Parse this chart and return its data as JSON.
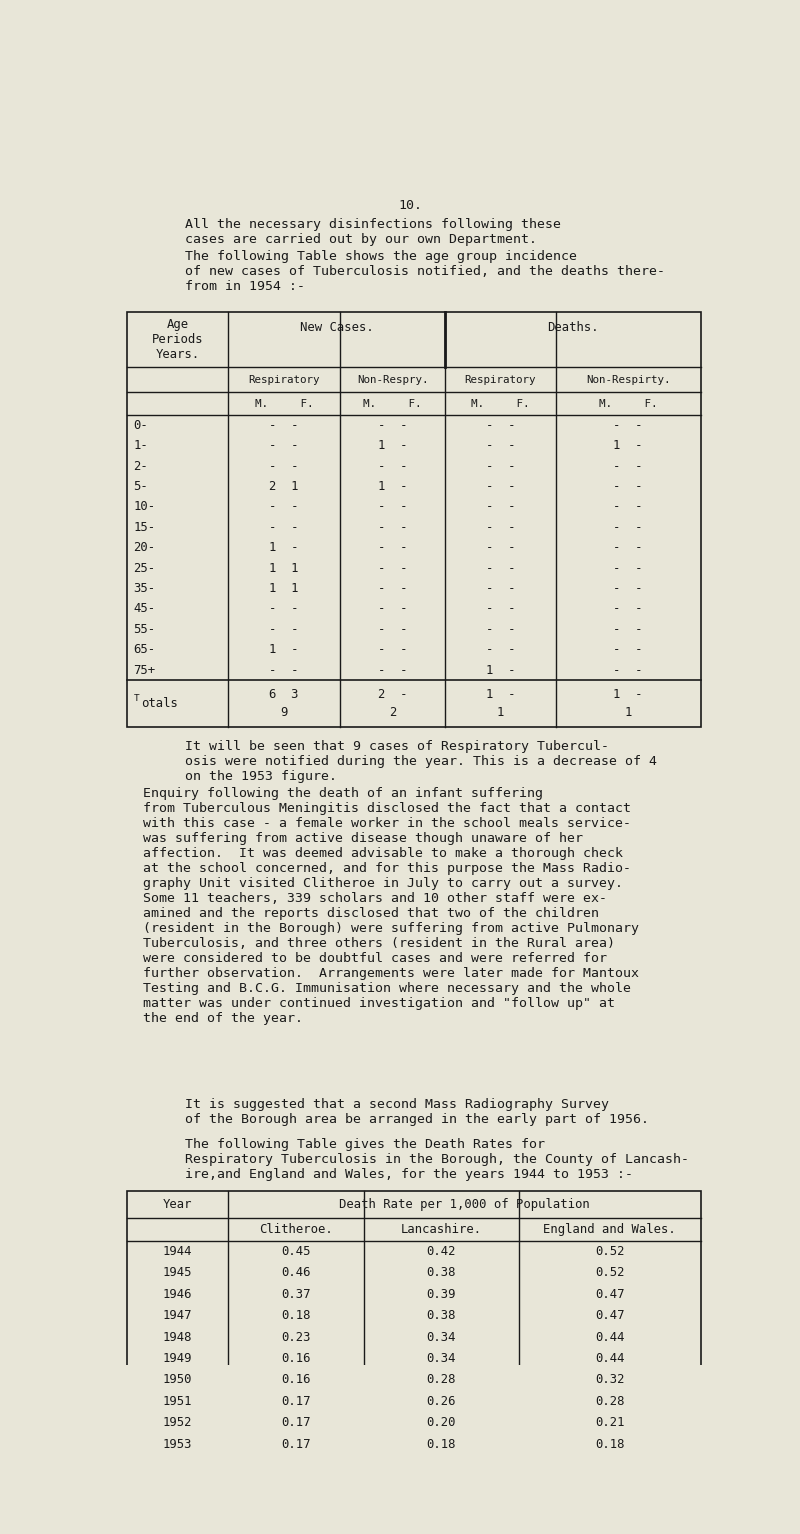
{
  "bg_color": "#e8e6d8",
  "text_color": "#1a1a1a",
  "page_number": "10.",
  "para1": "All the necessary disinfections following these\ncases are carried out by our own Department.",
  "para2": "The following Table shows the age group incidence\nof new cases of Tuberculosis notified, and the deaths there-\nfrom in 1954 :-",
  "age_rows": [
    "0-",
    "1-",
    "2-",
    "5-",
    "10-",
    "15-",
    "20-",
    "25-",
    "35-",
    "45-",
    "55-",
    "65-",
    "75+"
  ],
  "table1_data": [
    [
      "-  -",
      "-  -",
      "-  -",
      "-  -"
    ],
    [
      "-  -",
      "1  -",
      "-  -",
      "1  -"
    ],
    [
      "-  -",
      "-  -",
      "-  -",
      "-  -"
    ],
    [
      "2  1",
      "1  -",
      "-  -",
      "-  -"
    ],
    [
      "-  -",
      "-  -",
      "-  -",
      "-  -"
    ],
    [
      "-  -",
      "-  -",
      "-  -",
      "-  -"
    ],
    [
      "1  -",
      "-  -",
      "-  -",
      "-  -"
    ],
    [
      "1  1",
      "-  -",
      "-  -",
      "-  -"
    ],
    [
      "1  1",
      "-  -",
      "-  -",
      "-  -"
    ],
    [
      "-  -",
      "-  -",
      "-  -",
      "-  -"
    ],
    [
      "-  -",
      "-  -",
      "-  -",
      "-  -"
    ],
    [
      "1  -",
      "-  -",
      "-  -",
      "-  -"
    ],
    [
      "-  -",
      "-  -",
      "1  -",
      "-  -"
    ]
  ],
  "totals_top": [
    "6  3",
    "2  -",
    "1  -",
    "1  -"
  ],
  "totals_bot": [
    "9",
    "2",
    "1",
    "1"
  ],
  "para3": "It will be seen that 9 cases of Respiratory Tubercul-\nosis were notified during the year. This is a decrease of 4\non the 1953 figure.",
  "para4_indent": "Enquiry following the death of an infant suffering\nfrom Tuberculous Meningitis disclosed the fact that a contact\nwith this case - a female worker in the school meals service-\nwas suffering from active disease though unaware of her\naffection.  It was deemed advisable to make a thorough check\nat the school concerned, and for this purpose the Mass Radio-\ngraphy Unit visited Clitheroe in July to carry out a survey.\nSome 11 teachers, 339 scholars and 10 other staff were ex-\namined and the reports disclosed that two of the children\n(resident in the Borough) were suffering from active Pulmonary\nTuberculosis, and three others (resident in the Rural area)\nwere considered to be doubtful cases and were referred for\nfurther observation.  Arrangements were later made for Mantoux\nTesting and B.C.G. Immunisation where necessary and the whole\nmatter was under continued investigation and \"follow up\" at\nthe end of the year.",
  "para5": "It is suggested that a second Mass Radiography Survey\nof the Borough area be arranged in the early part of 1956.",
  "para6": "The following Table gives the Death Rates for\nRespiratory Tuberculosis in the Borough, the County of Lancash-\nire,and England and Wales, for the years 1944 to 1953 :-",
  "table2_data": [
    [
      "1944",
      "0.45",
      "0.42",
      "0.52"
    ],
    [
      "1945",
      "0.46",
      "0.38",
      "0.52"
    ],
    [
      "1946",
      "0.37",
      "0.39",
      "0.47"
    ],
    [
      "1947",
      "0.18",
      "0.38",
      "0.47"
    ],
    [
      "1948",
      "0.23",
      "0.34",
      "0.44"
    ],
    [
      "1949",
      "0.16",
      "0.34",
      "0.44"
    ],
    [
      "1950",
      "0.16",
      "0.28",
      "0.32"
    ],
    [
      "1951",
      "0.17",
      "0.26",
      "0.28"
    ],
    [
      "1952",
      "0.17",
      "0.20",
      "0.21"
    ],
    [
      "1953",
      "0.17",
      "0.18",
      "0.18"
    ]
  ],
  "font_size_body": 9.5,
  "font_size_small": 8.8,
  "font_family": "monospace"
}
